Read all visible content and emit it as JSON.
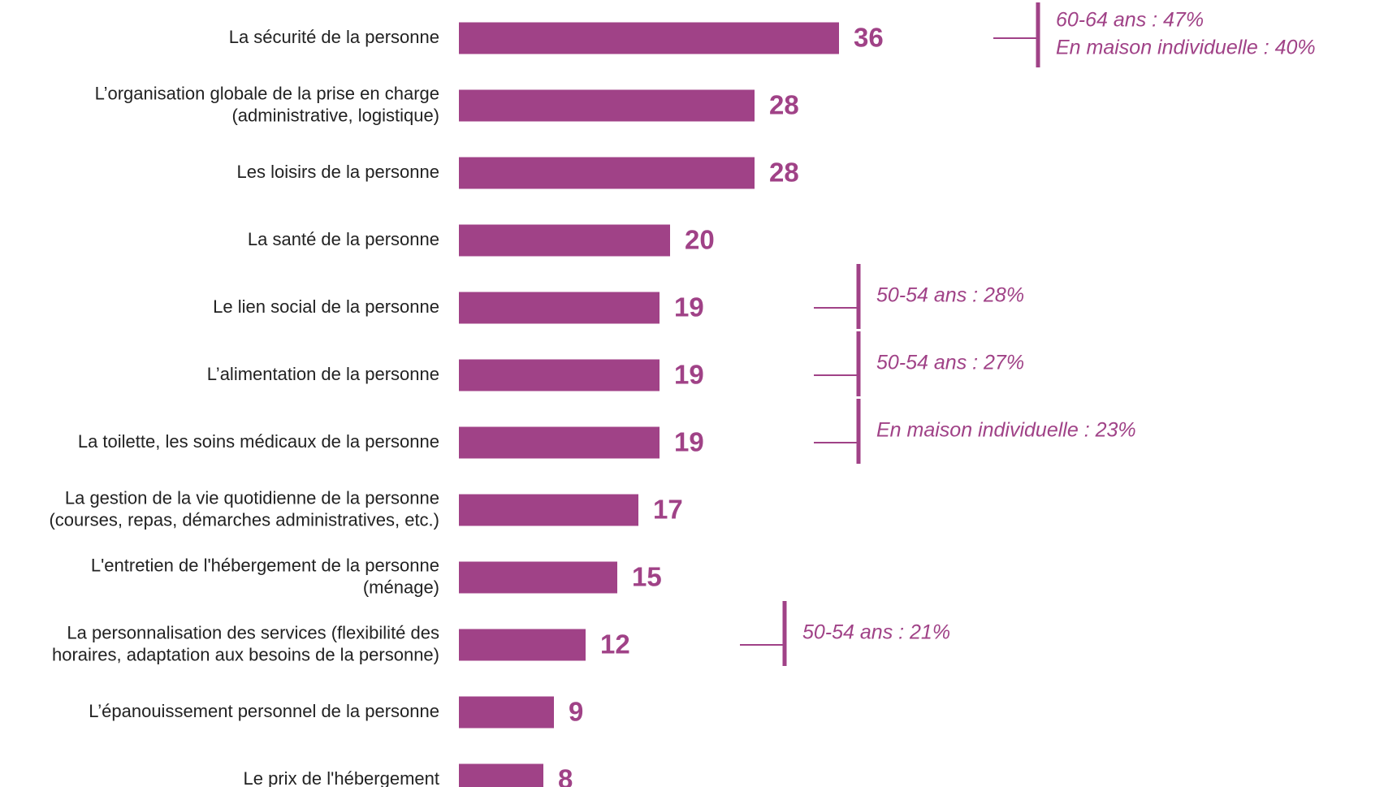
{
  "chart_data": {
    "type": "bar",
    "orientation": "horizontal",
    "color": "#a04287",
    "categories": [
      "La sécurité de la personne",
      "L’organisation globale de la prise en charge\n(administrative, logistique)",
      "Les loisirs de la personne",
      "La santé de la personne",
      "Le lien social de la personne",
      "L’alimentation de la personne",
      "La toilette, les soins médicaux de la personne",
      "La gestion de la vie quotidienne de la personne\n(courses, repas, démarches administratives, etc.)",
      "L'entretien de l'hébergement de la personne\n(ménage)",
      "La personnalisation des services (flexibilité des\nhoraires, adaptation aux besoins de la personne)",
      "L’épanouissement personnel de la personne",
      "Le prix de l'hébergement"
    ],
    "values": [
      36,
      28,
      28,
      20,
      19,
      19,
      19,
      17,
      15,
      12,
      9,
      8
    ],
    "annotations": [
      [
        "60-64 ans : 47%",
        "En maison individuelle : 40%"
      ],
      null,
      null,
      null,
      [
        "50-54 ans : 28%"
      ],
      [
        "50-54 ans : 27%"
      ],
      [
        "En maison individuelle : 23%"
      ],
      null,
      null,
      [
        "50-54 ans : 21%"
      ],
      null,
      null
    ]
  }
}
